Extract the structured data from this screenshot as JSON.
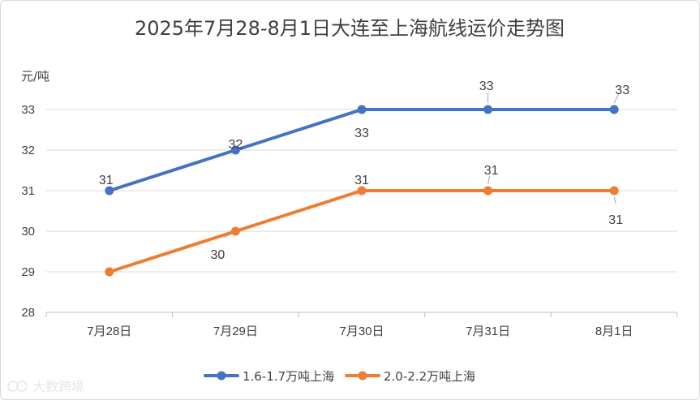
{
  "chart_data": {
    "type": "line",
    "title": "2025年7月28-8月1日大连至上海航线运价走势图",
    "ylabel": "元/吨",
    "xlabel": "",
    "ylim": [
      28,
      33
    ],
    "yticks": [
      28,
      29,
      30,
      31,
      32,
      33
    ],
    "categories": [
      "7月28日",
      "7月29日",
      "7月30日",
      "7月31日",
      "8月1日"
    ],
    "grid": true,
    "legend_position": "bottom",
    "series": [
      {
        "name": "1.6-1.7万吨上海",
        "color": "#4472C4",
        "values": [
          31,
          32,
          33,
          33,
          33
        ]
      },
      {
        "name": "2.0-2.2万吨上海",
        "color": "#ED7D31",
        "values": [
          29,
          30,
          31,
          31,
          31
        ]
      }
    ],
    "data_labels": [
      [
        "31",
        "32",
        "33",
        "33",
        "33"
      ],
      [
        "",
        "30",
        "31",
        "31",
        "31"
      ]
    ]
  },
  "watermark": "大数跨境"
}
